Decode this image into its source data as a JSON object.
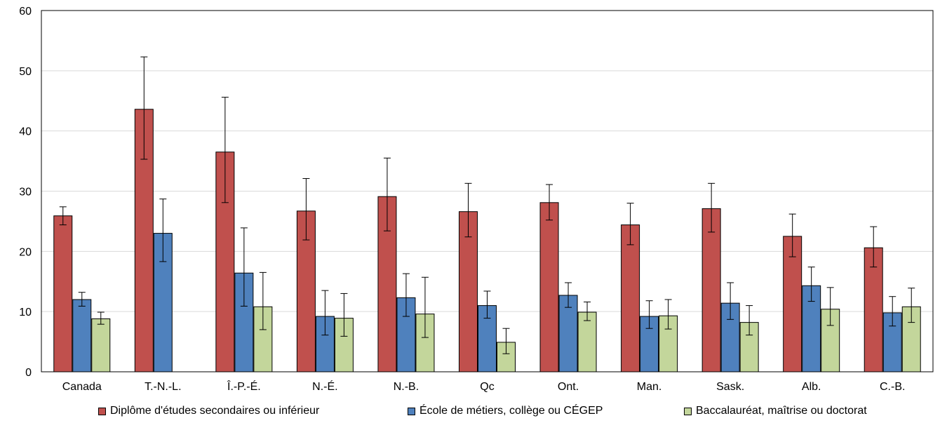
{
  "chart_data": {
    "type": "bar",
    "categories": [
      "Canada",
      "T.-N.-L.",
      "Î.-P.-É.",
      "N.-É.",
      "N.-B.",
      "Qc",
      "Ont.",
      "Man.",
      "Sask.",
      "Alb.",
      "C.-B."
    ],
    "series": [
      {
        "name": "Diplôme d'études secondaires ou inférieur",
        "color": "#C0504D",
        "values": [
          25.9,
          43.6,
          36.5,
          26.7,
          29.1,
          26.6,
          28.1,
          24.4,
          27.1,
          22.5,
          20.6
        ],
        "error_low": [
          24.4,
          35.3,
          28.1,
          21.9,
          23.4,
          22.4,
          25.2,
          21.1,
          23.2,
          19.1,
          17.4
        ],
        "error_high": [
          27.4,
          52.3,
          45.6,
          32.1,
          35.5,
          31.3,
          31.1,
          28.0,
          31.3,
          26.2,
          24.1
        ]
      },
      {
        "name": "École de métiers, collège ou CÉGEP",
        "color": "#4F81BD",
        "values": [
          12.0,
          23.0,
          16.4,
          9.2,
          12.3,
          11.0,
          12.7,
          9.2,
          11.4,
          14.3,
          9.8
        ],
        "error_low": [
          10.9,
          18.3,
          10.9,
          6.1,
          9.2,
          8.9,
          10.7,
          7.2,
          8.7,
          11.7,
          7.6
        ],
        "error_high": [
          13.2,
          28.7,
          23.9,
          13.5,
          16.3,
          13.4,
          14.8,
          11.8,
          14.8,
          17.4,
          12.5
        ]
      },
      {
        "name": "Baccalauréat, maîtrise ou doctorat",
        "color": "#C3D69B",
        "values": [
          8.8,
          null,
          10.8,
          8.9,
          9.6,
          4.9,
          9.9,
          9.3,
          8.2,
          10.4,
          10.8
        ],
        "error_low": [
          7.9,
          null,
          7.0,
          5.9,
          5.7,
          3.0,
          8.5,
          7.1,
          6.1,
          7.7,
          8.2
        ],
        "error_high": [
          9.9,
          null,
          16.5,
          13.0,
          15.7,
          7.2,
          11.6,
          12.0,
          11.0,
          14.0,
          13.9
        ]
      }
    ],
    "ylim": [
      0,
      60
    ],
    "yticks": [
      "0",
      "10",
      "20",
      "30",
      "40",
      "50",
      "60"
    ],
    "grid": true,
    "legend_position": "bottom"
  }
}
